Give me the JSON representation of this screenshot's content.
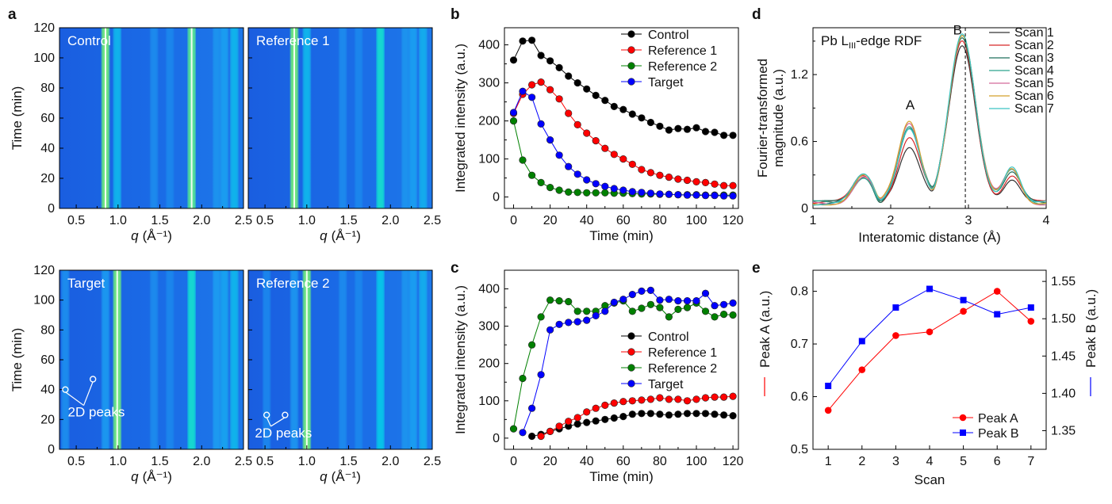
{
  "panel_letters": [
    "a",
    "b",
    "c",
    "d",
    "e"
  ],
  "chart_data": [
    {
      "id": "a1",
      "type": "heatmap",
      "panel": "a",
      "label": "Control",
      "xlabel_italic": "q",
      "xlabel_unit": "(Å⁻¹)",
      "ylabel": "Time (min)",
      "xlim": [
        0.3,
        2.5
      ],
      "ylim": [
        0,
        120
      ],
      "xticks": [
        "0.5",
        "1.0",
        "1.5",
        "2.0",
        "2.5"
      ],
      "yticks": [
        "0",
        "20",
        "40",
        "60",
        "80",
        "100",
        "120"
      ],
      "peaks": [
        {
          "q": 0.85,
          "strength": 1.0,
          "width": 0.012,
          "t_start": 0,
          "t_end": 120
        },
        {
          "q": 0.99,
          "strength": 0.55,
          "width": 0.01,
          "t_start": 0,
          "t_end": 120
        },
        {
          "q": 1.43,
          "strength": 0.28,
          "width": 0.012,
          "t_start": 0,
          "t_end": 120
        },
        {
          "q": 1.62,
          "strength": 0.26,
          "width": 0.012,
          "t_start": 0,
          "t_end": 120
        },
        {
          "q": 1.88,
          "strength": 0.95,
          "width": 0.016,
          "t_start": 0,
          "t_end": 120
        },
        {
          "q": 2.18,
          "strength": 0.35,
          "width": 0.012,
          "t_start": 0,
          "t_end": 120
        },
        {
          "q": 2.27,
          "strength": 0.42,
          "width": 0.012,
          "t_start": 0,
          "t_end": 120
        },
        {
          "q": 2.39,
          "strength": 0.55,
          "width": 0.014,
          "t_start": 0,
          "t_end": 120
        }
      ],
      "annotations": []
    },
    {
      "id": "a2",
      "type": "heatmap",
      "panel": "a",
      "label": "Reference 1",
      "xlabel_italic": "q",
      "xlabel_unit": "(Å⁻¹)",
      "ylabel": "",
      "xlim": [
        0.3,
        2.5
      ],
      "ylim": [
        0,
        120
      ],
      "xticks": [
        "0.5",
        "1.0",
        "1.5",
        "2.0",
        "2.5"
      ],
      "yticks": [],
      "peaks": [
        {
          "q": 0.85,
          "strength": 1.0,
          "width": 0.012,
          "t_start": 0,
          "t_end": 120
        },
        {
          "q": 1.0,
          "strength": 0.55,
          "width": 0.01,
          "t_start": 0,
          "t_end": 120
        },
        {
          "q": 1.43,
          "strength": 0.28,
          "width": 0.012,
          "t_start": 0,
          "t_end": 120
        },
        {
          "q": 1.62,
          "strength": 0.26,
          "width": 0.012,
          "t_start": 0,
          "t_end": 120
        },
        {
          "q": 1.88,
          "strength": 0.8,
          "width": 0.016,
          "t_start": 0,
          "t_end": 120
        },
        {
          "q": 2.18,
          "strength": 0.35,
          "width": 0.012,
          "t_start": 0,
          "t_end": 120
        },
        {
          "q": 2.27,
          "strength": 0.42,
          "width": 0.012,
          "t_start": 0,
          "t_end": 120
        },
        {
          "q": 2.39,
          "strength": 0.5,
          "width": 0.014,
          "t_start": 0,
          "t_end": 120
        }
      ],
      "annotations": []
    },
    {
      "id": "a3",
      "type": "heatmap",
      "panel": "a",
      "label": "Target",
      "xlabel_italic": "q",
      "xlabel_unit": "(Å⁻¹)",
      "ylabel": "Time (min)",
      "xlim": [
        0.3,
        2.5
      ],
      "ylim": [
        0,
        120
      ],
      "xticks": [
        "0.5",
        "1.0",
        "1.5",
        "2.0",
        "2.5"
      ],
      "yticks": [
        "0",
        "20",
        "40",
        "60",
        "80",
        "100",
        "120"
      ],
      "peaks": [
        {
          "q": 0.37,
          "strength": 0.3,
          "width": 0.01,
          "t_start": 0,
          "t_end": 120
        },
        {
          "q": 0.85,
          "strength": 0.38,
          "width": 0.012,
          "t_start": 0,
          "t_end": 120
        },
        {
          "q": 0.99,
          "strength": 1.0,
          "width": 0.014,
          "t_start": 0,
          "t_end": 120
        },
        {
          "q": 1.43,
          "strength": 0.28,
          "width": 0.012,
          "t_start": 0,
          "t_end": 120
        },
        {
          "q": 1.62,
          "strength": 0.26,
          "width": 0.012,
          "t_start": 0,
          "t_end": 120
        },
        {
          "q": 1.88,
          "strength": 0.8,
          "width": 0.016,
          "t_start": 0,
          "t_end": 120
        },
        {
          "q": 2.18,
          "strength": 0.4,
          "width": 0.012,
          "t_start": 0,
          "t_end": 120
        },
        {
          "q": 2.27,
          "strength": 0.45,
          "width": 0.012,
          "t_start": 0,
          "t_end": 120
        },
        {
          "q": 2.39,
          "strength": 0.55,
          "width": 0.014,
          "t_start": 0,
          "t_end": 120
        }
      ],
      "annotations": [
        {
          "text": "2D peaks",
          "circles": [
            [
              0.37,
              40
            ],
            [
              0.7,
              47
            ]
          ],
          "text_at": [
            0.4,
            22
          ]
        }
      ]
    },
    {
      "id": "a4",
      "type": "heatmap",
      "panel": "a",
      "label": "Reference 2",
      "xlabel_italic": "q",
      "xlabel_unit": "(Å⁻¹)",
      "ylabel": "",
      "xlim": [
        0.3,
        2.5
      ],
      "ylim": [
        0,
        120
      ],
      "xticks": [
        "0.5",
        "1.0",
        "1.5",
        "2.0",
        "2.5"
      ],
      "yticks": [],
      "peaks": [
        {
          "q": 0.52,
          "strength": 0.25,
          "width": 0.01,
          "t_start": 0,
          "t_end": 120
        },
        {
          "q": 0.85,
          "strength": 0.35,
          "width": 0.012,
          "t_start": 0,
          "t_end": 120
        },
        {
          "q": 1.0,
          "strength": 1.0,
          "width": 0.014,
          "t_start": 0,
          "t_end": 120
        },
        {
          "q": 1.43,
          "strength": 0.28,
          "width": 0.012,
          "t_start": 0,
          "t_end": 120
        },
        {
          "q": 1.62,
          "strength": 0.26,
          "width": 0.012,
          "t_start": 0,
          "t_end": 120
        },
        {
          "q": 1.88,
          "strength": 0.65,
          "width": 0.016,
          "t_start": 0,
          "t_end": 120
        },
        {
          "q": 2.18,
          "strength": 0.35,
          "width": 0.012,
          "t_start": 0,
          "t_end": 120
        },
        {
          "q": 2.27,
          "strength": 0.42,
          "width": 0.012,
          "t_start": 0,
          "t_end": 120
        },
        {
          "q": 2.39,
          "strength": 0.5,
          "width": 0.014,
          "t_start": 0,
          "t_end": 120
        }
      ],
      "annotations": [
        {
          "text": "2D peaks",
          "circles": [
            [
              0.52,
              23
            ],
            [
              0.74,
              23
            ]
          ],
          "text_at": [
            0.38,
            8
          ]
        }
      ]
    },
    {
      "id": "b",
      "type": "scatter",
      "panel": "b",
      "xlabel": "Time (min)",
      "ylabel": "Integrated intensity (a.u.)",
      "xlim": [
        -5,
        123
      ],
      "ylim": [
        -30,
        445
      ],
      "xticks": [
        0,
        20,
        40,
        60,
        80,
        100,
        120
      ],
      "yticks": [
        0,
        100,
        200,
        300,
        400
      ],
      "legend_position": "top-right",
      "series": [
        {
          "name": "Control",
          "color": "#000000",
          "x": [
            0,
            5,
            10,
            15,
            20,
            25,
            30,
            35,
            40,
            45,
            50,
            55,
            60,
            65,
            70,
            75,
            80,
            85,
            90,
            95,
            100,
            105,
            110,
            115,
            120
          ],
          "y": [
            360,
            410,
            412,
            372,
            358,
            340,
            318,
            300,
            284,
            267,
            254,
            238,
            230,
            218,
            208,
            196,
            186,
            176,
            180,
            178,
            182,
            172,
            170,
            162,
            162
          ]
        },
        {
          "name": "Reference 1",
          "color": "#ff0000",
          "x": [
            0,
            5,
            10,
            15,
            20,
            25,
            30,
            35,
            40,
            45,
            50,
            55,
            60,
            65,
            70,
            75,
            80,
            85,
            90,
            95,
            100,
            105,
            110,
            115,
            120
          ],
          "y": [
            220,
            270,
            295,
            302,
            282,
            258,
            220,
            190,
            168,
            148,
            128,
            112,
            100,
            86,
            72,
            64,
            57,
            52,
            47,
            44,
            40,
            38,
            34,
            30,
            30
          ]
        },
        {
          "name": "Reference 2",
          "color": "#008000",
          "x": [
            0,
            5,
            10,
            15,
            20,
            25,
            30,
            35,
            40,
            45,
            50,
            55,
            60,
            65,
            70,
            75,
            80,
            85,
            90,
            95,
            100,
            105,
            110,
            115,
            120
          ],
          "y": [
            200,
            97,
            57,
            38,
            25,
            18,
            13,
            12,
            11,
            11,
            11,
            10,
            10,
            9,
            8,
            8,
            7,
            7,
            6,
            6,
            6,
            5,
            5,
            5,
            5
          ]
        },
        {
          "name": "Target",
          "color": "#0000ff",
          "x": [
            0,
            5,
            10,
            15,
            20,
            25,
            30,
            35,
            40,
            45,
            50,
            55,
            60,
            65,
            70,
            75,
            80,
            85,
            90,
            95,
            100,
            105,
            110,
            115,
            120
          ],
          "y": [
            222,
            278,
            262,
            192,
            150,
            110,
            80,
            60,
            45,
            35,
            28,
            22,
            18,
            14,
            12,
            10,
            8,
            7,
            6,
            5,
            5,
            4,
            4,
            3,
            3
          ]
        }
      ]
    },
    {
      "id": "c",
      "type": "scatter",
      "panel": "c",
      "xlabel": "Time (min)",
      "ylabel": "Integrated intensity (a.u.)",
      "xlim": [
        -5,
        123
      ],
      "ylim": [
        -30,
        450
      ],
      "xticks": [
        0,
        20,
        40,
        60,
        80,
        100,
        120
      ],
      "yticks": [
        0,
        100,
        200,
        300,
        400
      ],
      "legend_position": "center-right",
      "series": [
        {
          "name": "Control",
          "color": "#000000",
          "x": [
            10,
            15,
            20,
            25,
            30,
            35,
            40,
            45,
            50,
            55,
            60,
            65,
            70,
            75,
            80,
            85,
            90,
            95,
            100,
            105,
            110,
            115,
            120
          ],
          "y": [
            5,
            10,
            18,
            25,
            32,
            38,
            42,
            46,
            50,
            54,
            58,
            64,
            66,
            66,
            64,
            62,
            64,
            66,
            66,
            66,
            64,
            62,
            60
          ]
        },
        {
          "name": "Reference 1",
          "color": "#ff0000",
          "x": [
            15,
            20,
            25,
            30,
            35,
            40,
            45,
            50,
            55,
            60,
            65,
            70,
            75,
            80,
            85,
            90,
            95,
            100,
            105,
            110,
            115,
            120
          ],
          "y": [
            5,
            18,
            32,
            45,
            55,
            70,
            80,
            88,
            94,
            98,
            100,
            102,
            104,
            108,
            104,
            104,
            100,
            104,
            108,
            110,
            110,
            112
          ]
        },
        {
          "name": "Reference 2",
          "color": "#008000",
          "x": [
            0,
            5,
            10,
            15,
            20,
            25,
            30,
            35,
            40,
            45,
            50,
            55,
            60,
            65,
            70,
            75,
            80,
            85,
            90,
            95,
            100,
            105,
            110,
            115,
            120
          ],
          "y": [
            25,
            160,
            250,
            325,
            370,
            368,
            366,
            340,
            340,
            340,
            355,
            362,
            368,
            340,
            348,
            358,
            350,
            325,
            345,
            350,
            362,
            340,
            325,
            332,
            330
          ]
        },
        {
          "name": "Target",
          "color": "#0000ff",
          "x": [
            5,
            10,
            15,
            20,
            25,
            30,
            35,
            40,
            45,
            50,
            55,
            60,
            65,
            70,
            75,
            80,
            85,
            90,
            95,
            100,
            105,
            110,
            115,
            120
          ],
          "y": [
            15,
            80,
            170,
            290,
            305,
            310,
            312,
            316,
            328,
            340,
            364,
            372,
            385,
            394,
            396,
            370,
            372,
            368,
            368,
            368,
            388,
            355,
            358,
            362
          ]
        }
      ]
    },
    {
      "id": "d",
      "type": "line",
      "panel": "d",
      "title_main": "Pb L",
      "title_sub": "III",
      "title_rest": "-edge RDF",
      "xlabel": "Interatomic distance (Å)",
      "ylabel": "Fourier-transformed magnitude (a.u.)",
      "xlim": [
        1,
        4
      ],
      "ylim": [
        0,
        1.62
      ],
      "xticks": [
        1,
        2,
        3,
        4
      ],
      "yticks": [
        0,
        0.6,
        1.2
      ],
      "ytick_labels": [
        "0",
        "0.6",
        "1.2"
      ],
      "vline": 2.96,
      "peak_labels": [
        {
          "text": "A",
          "x": 2.25,
          "y": 0.86
        },
        {
          "text": "B",
          "x": 2.86,
          "y": 1.53
        }
      ],
      "legend_position": "top-right",
      "peak_A_values": [
        0.574,
        0.651,
        0.716,
        0.723,
        0.762,
        0.8,
        0.743
      ],
      "peak_B_values": [
        1.41,
        1.47,
        1.515,
        1.54,
        1.525,
        1.506,
        1.515
      ],
      "series": [
        {
          "name": "Scan 1",
          "color": "#333333"
        },
        {
          "name": "Scan 2",
          "color": "#d62728"
        },
        {
          "name": "Scan 3",
          "color": "#1f6f5c"
        },
        {
          "name": "Scan 4",
          "color": "#2ca58d"
        },
        {
          "name": "Scan 5",
          "color": "#d46a9a"
        },
        {
          "name": "Scan 6",
          "color": "#d4a02a"
        },
        {
          "name": "Scan 7",
          "color": "#3cc4c4"
        }
      ]
    },
    {
      "id": "e",
      "type": "line",
      "panel": "e",
      "xlabel": "Scan",
      "ylabel_left": "Peak A (a.u.)",
      "ylabel_right": "Peak B (a.u.)",
      "xlim": [
        0.55,
        7.45
      ],
      "ylim_left": [
        0.5,
        0.84
      ],
      "ylim_right": [
        1.325,
        1.565
      ],
      "xticks": [
        1,
        2,
        3,
        4,
        5,
        6,
        7
      ],
      "yticks_left": [
        "0.5",
        "0.6",
        "0.7",
        "0.8"
      ],
      "yticks_right": [
        "1.35",
        "1.40",
        "1.45",
        "1.50",
        "1.55"
      ],
      "legend_position": "bottom-right",
      "series": [
        {
          "name": "Peak A",
          "color": "#ff0000",
          "axis": "left",
          "marker": "circle",
          "x": [
            1,
            2,
            3,
            4,
            5,
            6,
            7
          ],
          "y": [
            0.574,
            0.651,
            0.716,
            0.723,
            0.762,
            0.8,
            0.743
          ]
        },
        {
          "name": "Peak B",
          "color": "#0000ff",
          "axis": "right",
          "marker": "square",
          "x": [
            1,
            2,
            3,
            4,
            5,
            6,
            7
          ],
          "y": [
            1.41,
            1.47,
            1.515,
            1.54,
            1.525,
            1.506,
            1.515
          ]
        }
      ]
    }
  ]
}
